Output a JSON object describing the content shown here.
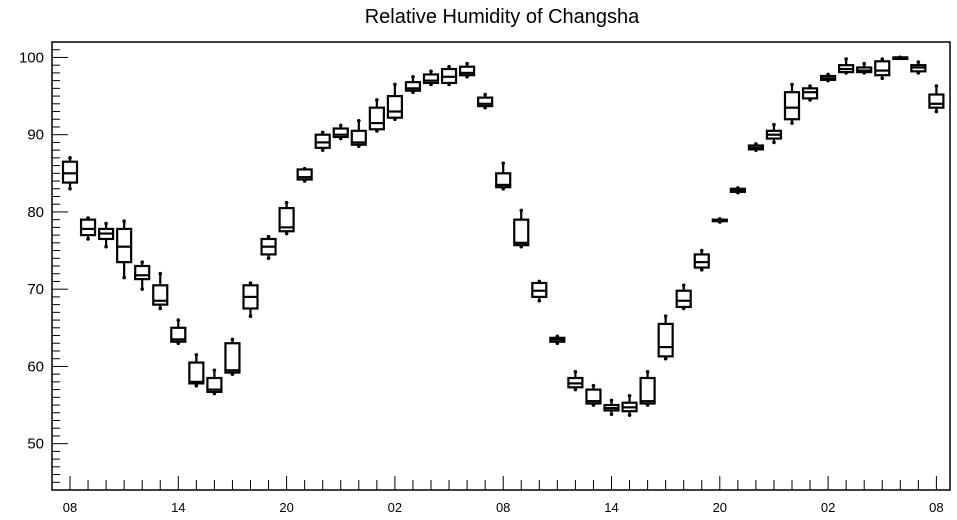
{
  "chart_data": {
    "type": "box",
    "title": "Relative Humidity of Changsha",
    "xlabel": "",
    "ylabel": "",
    "ylim": [
      44,
      102
    ],
    "yticks": [
      50,
      60,
      70,
      80,
      90,
      100
    ],
    "xtick_labels": [
      "08",
      "14",
      "20",
      "02",
      "08",
      "14",
      "20",
      "02",
      "08"
    ],
    "grid": false,
    "legend": "none",
    "boxes": [
      {
        "x": 8,
        "min": 83.0,
        "q1": 83.8,
        "median": 85.0,
        "q3": 86.5,
        "max": 87.0
      },
      {
        "x": 9,
        "min": 76.5,
        "q1": 77.0,
        "median": 77.8,
        "q3": 79.0,
        "max": 79.2
      },
      {
        "x": 10,
        "min": 75.5,
        "q1": 76.5,
        "median": 77.2,
        "q3": 77.8,
        "max": 78.5
      },
      {
        "x": 11,
        "min": 71.5,
        "q1": 73.5,
        "median": 75.5,
        "q3": 77.8,
        "max": 78.8
      },
      {
        "x": 12,
        "min": 70.0,
        "q1": 71.3,
        "median": 71.8,
        "q3": 73.0,
        "max": 73.5
      },
      {
        "x": 13,
        "min": 67.5,
        "q1": 68.0,
        "median": 68.5,
        "q3": 70.5,
        "max": 72.0
      },
      {
        "x": 14,
        "min": 63.0,
        "q1": 63.2,
        "median": 63.5,
        "q3": 65.0,
        "max": 66.0
      },
      {
        "x": 15,
        "min": 57.5,
        "q1": 57.8,
        "median": 58.0,
        "q3": 60.5,
        "max": 61.5
      },
      {
        "x": 16,
        "min": 56.5,
        "q1": 56.7,
        "median": 57.0,
        "q3": 58.5,
        "max": 59.5
      },
      {
        "x": 17,
        "min": 59.0,
        "q1": 59.2,
        "median": 59.5,
        "q3": 63.0,
        "max": 63.5
      },
      {
        "x": 18,
        "min": 66.5,
        "q1": 67.5,
        "median": 69.0,
        "q3": 70.5,
        "max": 70.8
      },
      {
        "x": 19,
        "min": 74.0,
        "q1": 74.5,
        "median": 75.5,
        "q3": 76.5,
        "max": 76.8
      },
      {
        "x": 20,
        "min": 77.2,
        "q1": 77.5,
        "median": 78.0,
        "q3": 80.5,
        "max": 81.2
      },
      {
        "x": 21,
        "min": 84.0,
        "q1": 84.2,
        "median": 84.5,
        "q3": 85.5,
        "max": 85.6
      },
      {
        "x": 22,
        "min": 88.0,
        "q1": 88.3,
        "median": 89.0,
        "q3": 90.0,
        "max": 90.3
      },
      {
        "x": 23,
        "min": 89.5,
        "q1": 89.7,
        "median": 90.0,
        "q3": 90.8,
        "max": 91.2
      },
      {
        "x": 0,
        "min": 88.5,
        "q1": 88.7,
        "median": 89.0,
        "q3": 90.5,
        "max": 91.8
      },
      {
        "x": 1,
        "min": 90.5,
        "q1": 90.7,
        "median": 91.5,
        "q3": 93.5,
        "max": 94.5
      },
      {
        "x": 2,
        "min": 92.0,
        "q1": 92.2,
        "median": 93.0,
        "q3": 95.0,
        "max": 96.5
      },
      {
        "x": 3,
        "min": 95.5,
        "q1": 95.7,
        "median": 96.0,
        "q3": 96.8,
        "max": 97.5
      },
      {
        "x": 4,
        "min": 96.5,
        "q1": 96.7,
        "median": 97.0,
        "q3": 97.8,
        "max": 98.2
      },
      {
        "x": 5,
        "min": 96.5,
        "q1": 96.7,
        "median": 97.5,
        "q3": 98.5,
        "max": 98.8
      },
      {
        "x": 6,
        "min": 97.5,
        "q1": 97.7,
        "median": 98.0,
        "q3": 98.8,
        "max": 99.2
      },
      {
        "x": 7,
        "min": 93.5,
        "q1": 93.7,
        "median": 94.0,
        "q3": 94.8,
        "max": 95.2
      },
      {
        "x": 8,
        "min": 83.0,
        "q1": 83.2,
        "median": 83.5,
        "q3": 85.0,
        "max": 86.3
      },
      {
        "x": 9,
        "min": 75.5,
        "q1": 75.7,
        "median": 76.0,
        "q3": 79.0,
        "max": 80.2
      },
      {
        "x": 10,
        "min": 68.5,
        "q1": 69.0,
        "median": 69.8,
        "q3": 70.8,
        "max": 71.0
      },
      {
        "x": 11,
        "min": 63.0,
        "q1": 63.2,
        "median": 63.5,
        "q3": 63.7,
        "max": 63.9
      },
      {
        "x": 12,
        "min": 57.0,
        "q1": 57.3,
        "median": 57.8,
        "q3": 58.5,
        "max": 59.3
      },
      {
        "x": 13,
        "min": 55.0,
        "q1": 55.2,
        "median": 55.5,
        "q3": 57.0,
        "max": 57.5
      },
      {
        "x": 14,
        "min": 53.8,
        "q1": 54.3,
        "median": 54.6,
        "q3": 55.0,
        "max": 55.6
      },
      {
        "x": 15,
        "min": 53.7,
        "q1": 54.2,
        "median": 54.7,
        "q3": 55.3,
        "max": 56.2
      },
      {
        "x": 16,
        "min": 55.0,
        "q1": 55.2,
        "median": 55.5,
        "q3": 58.5,
        "max": 59.3
      },
      {
        "x": 17,
        "min": 61.0,
        "q1": 61.3,
        "median": 62.5,
        "q3": 65.5,
        "max": 66.5
      },
      {
        "x": 18,
        "min": 67.5,
        "q1": 67.7,
        "median": 68.5,
        "q3": 69.8,
        "max": 70.5
      },
      {
        "x": 19,
        "min": 72.5,
        "q1": 72.8,
        "median": 73.5,
        "q3": 74.5,
        "max": 75.0
      },
      {
        "x": 20,
        "min": 78.7,
        "q1": 78.8,
        "median": 78.9,
        "q3": 79.0,
        "max": 79.1
      },
      {
        "x": 21,
        "min": 82.5,
        "q1": 82.6,
        "median": 82.8,
        "q3": 83.0,
        "max": 83.1
      },
      {
        "x": 22,
        "min": 88.0,
        "q1": 88.1,
        "median": 88.3,
        "q3": 88.6,
        "max": 88.8
      },
      {
        "x": 23,
        "min": 89.0,
        "q1": 89.5,
        "median": 90.0,
        "q3": 90.5,
        "max": 91.3
      },
      {
        "x": 0,
        "min": 91.5,
        "q1": 92.0,
        "median": 93.5,
        "q3": 95.5,
        "max": 96.5
      },
      {
        "x": 1,
        "min": 94.5,
        "q1": 94.7,
        "median": 95.5,
        "q3": 96.0,
        "max": 96.3
      },
      {
        "x": 2,
        "min": 97.0,
        "q1": 97.1,
        "median": 97.3,
        "q3": 97.6,
        "max": 97.8
      },
      {
        "x": 3,
        "min": 98.0,
        "q1": 98.1,
        "median": 98.5,
        "q3": 99.0,
        "max": 99.8
      },
      {
        "x": 4,
        "min": 98.0,
        "q1": 98.1,
        "median": 98.3,
        "q3": 98.7,
        "max": 99.2
      },
      {
        "x": 5,
        "min": 97.3,
        "q1": 97.7,
        "median": 98.3,
        "q3": 99.5,
        "max": 99.8
      },
      {
        "x": 6,
        "min": 100.0,
        "q1": 100.0,
        "median": 100.0,
        "q3": 100.0,
        "max": 100.0
      },
      {
        "x": 7,
        "min": 98.0,
        "q1": 98.2,
        "median": 98.7,
        "q3": 99.0,
        "max": 99.4
      },
      {
        "x": 8,
        "min": 93.0,
        "q1": 93.5,
        "median": 94.0,
        "q3": 95.2,
        "max": 96.3
      }
    ]
  }
}
